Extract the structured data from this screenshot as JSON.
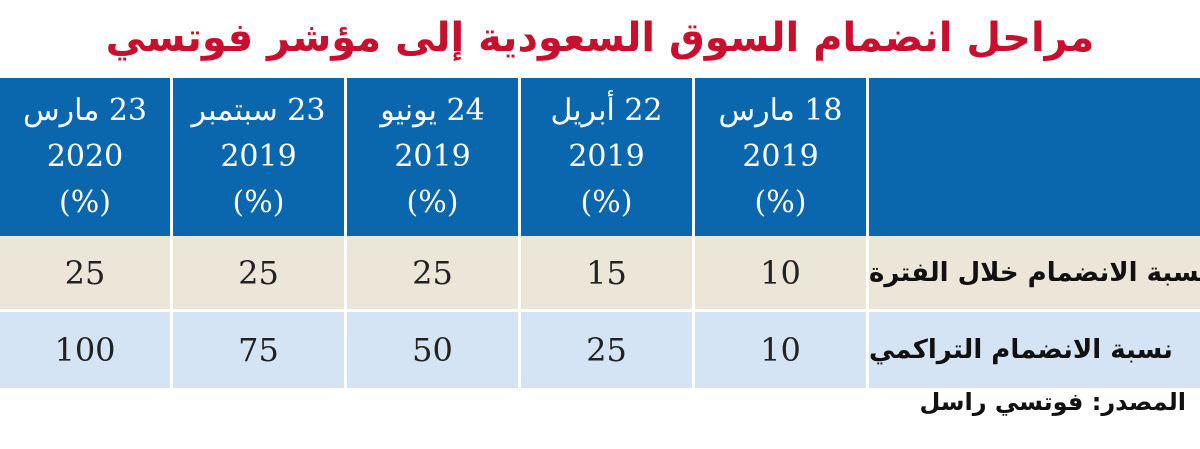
{
  "title": "مراحل انضمام السوق السعودية إلى مؤشر فوتسي",
  "columns": [
    {
      "line1": "23 مارس",
      "line2": "2020",
      "line3": "(%)"
    },
    {
      "line1": "23 سبتمبر",
      "line2": "2019",
      "line3": "(%)"
    },
    {
      "line1": "24 يونيو",
      "line2": "2019",
      "line3": "(%)"
    },
    {
      "line1": "22 أبريل",
      "line2": "2019",
      "line3": "(%)"
    },
    {
      "line1": "18 مارس",
      "line2": "2019",
      "line3": "(%)"
    }
  ],
  "rows": [
    {
      "label": "نسبة الانضمام خلال الفترة",
      "values": [
        "25",
        "25",
        "25",
        "15",
        "10"
      ]
    },
    {
      "label": "نسبة الانضمام التراكمي",
      "values": [
        "100",
        "75",
        "50",
        "25",
        "10"
      ]
    }
  ],
  "source": "المصدر: فوتسي راسل",
  "colors": {
    "title": "#c8102e",
    "header_bg": "#0b67ad",
    "row1_bg": "#ece6d8",
    "row2_bg": "#d5e4f4"
  }
}
